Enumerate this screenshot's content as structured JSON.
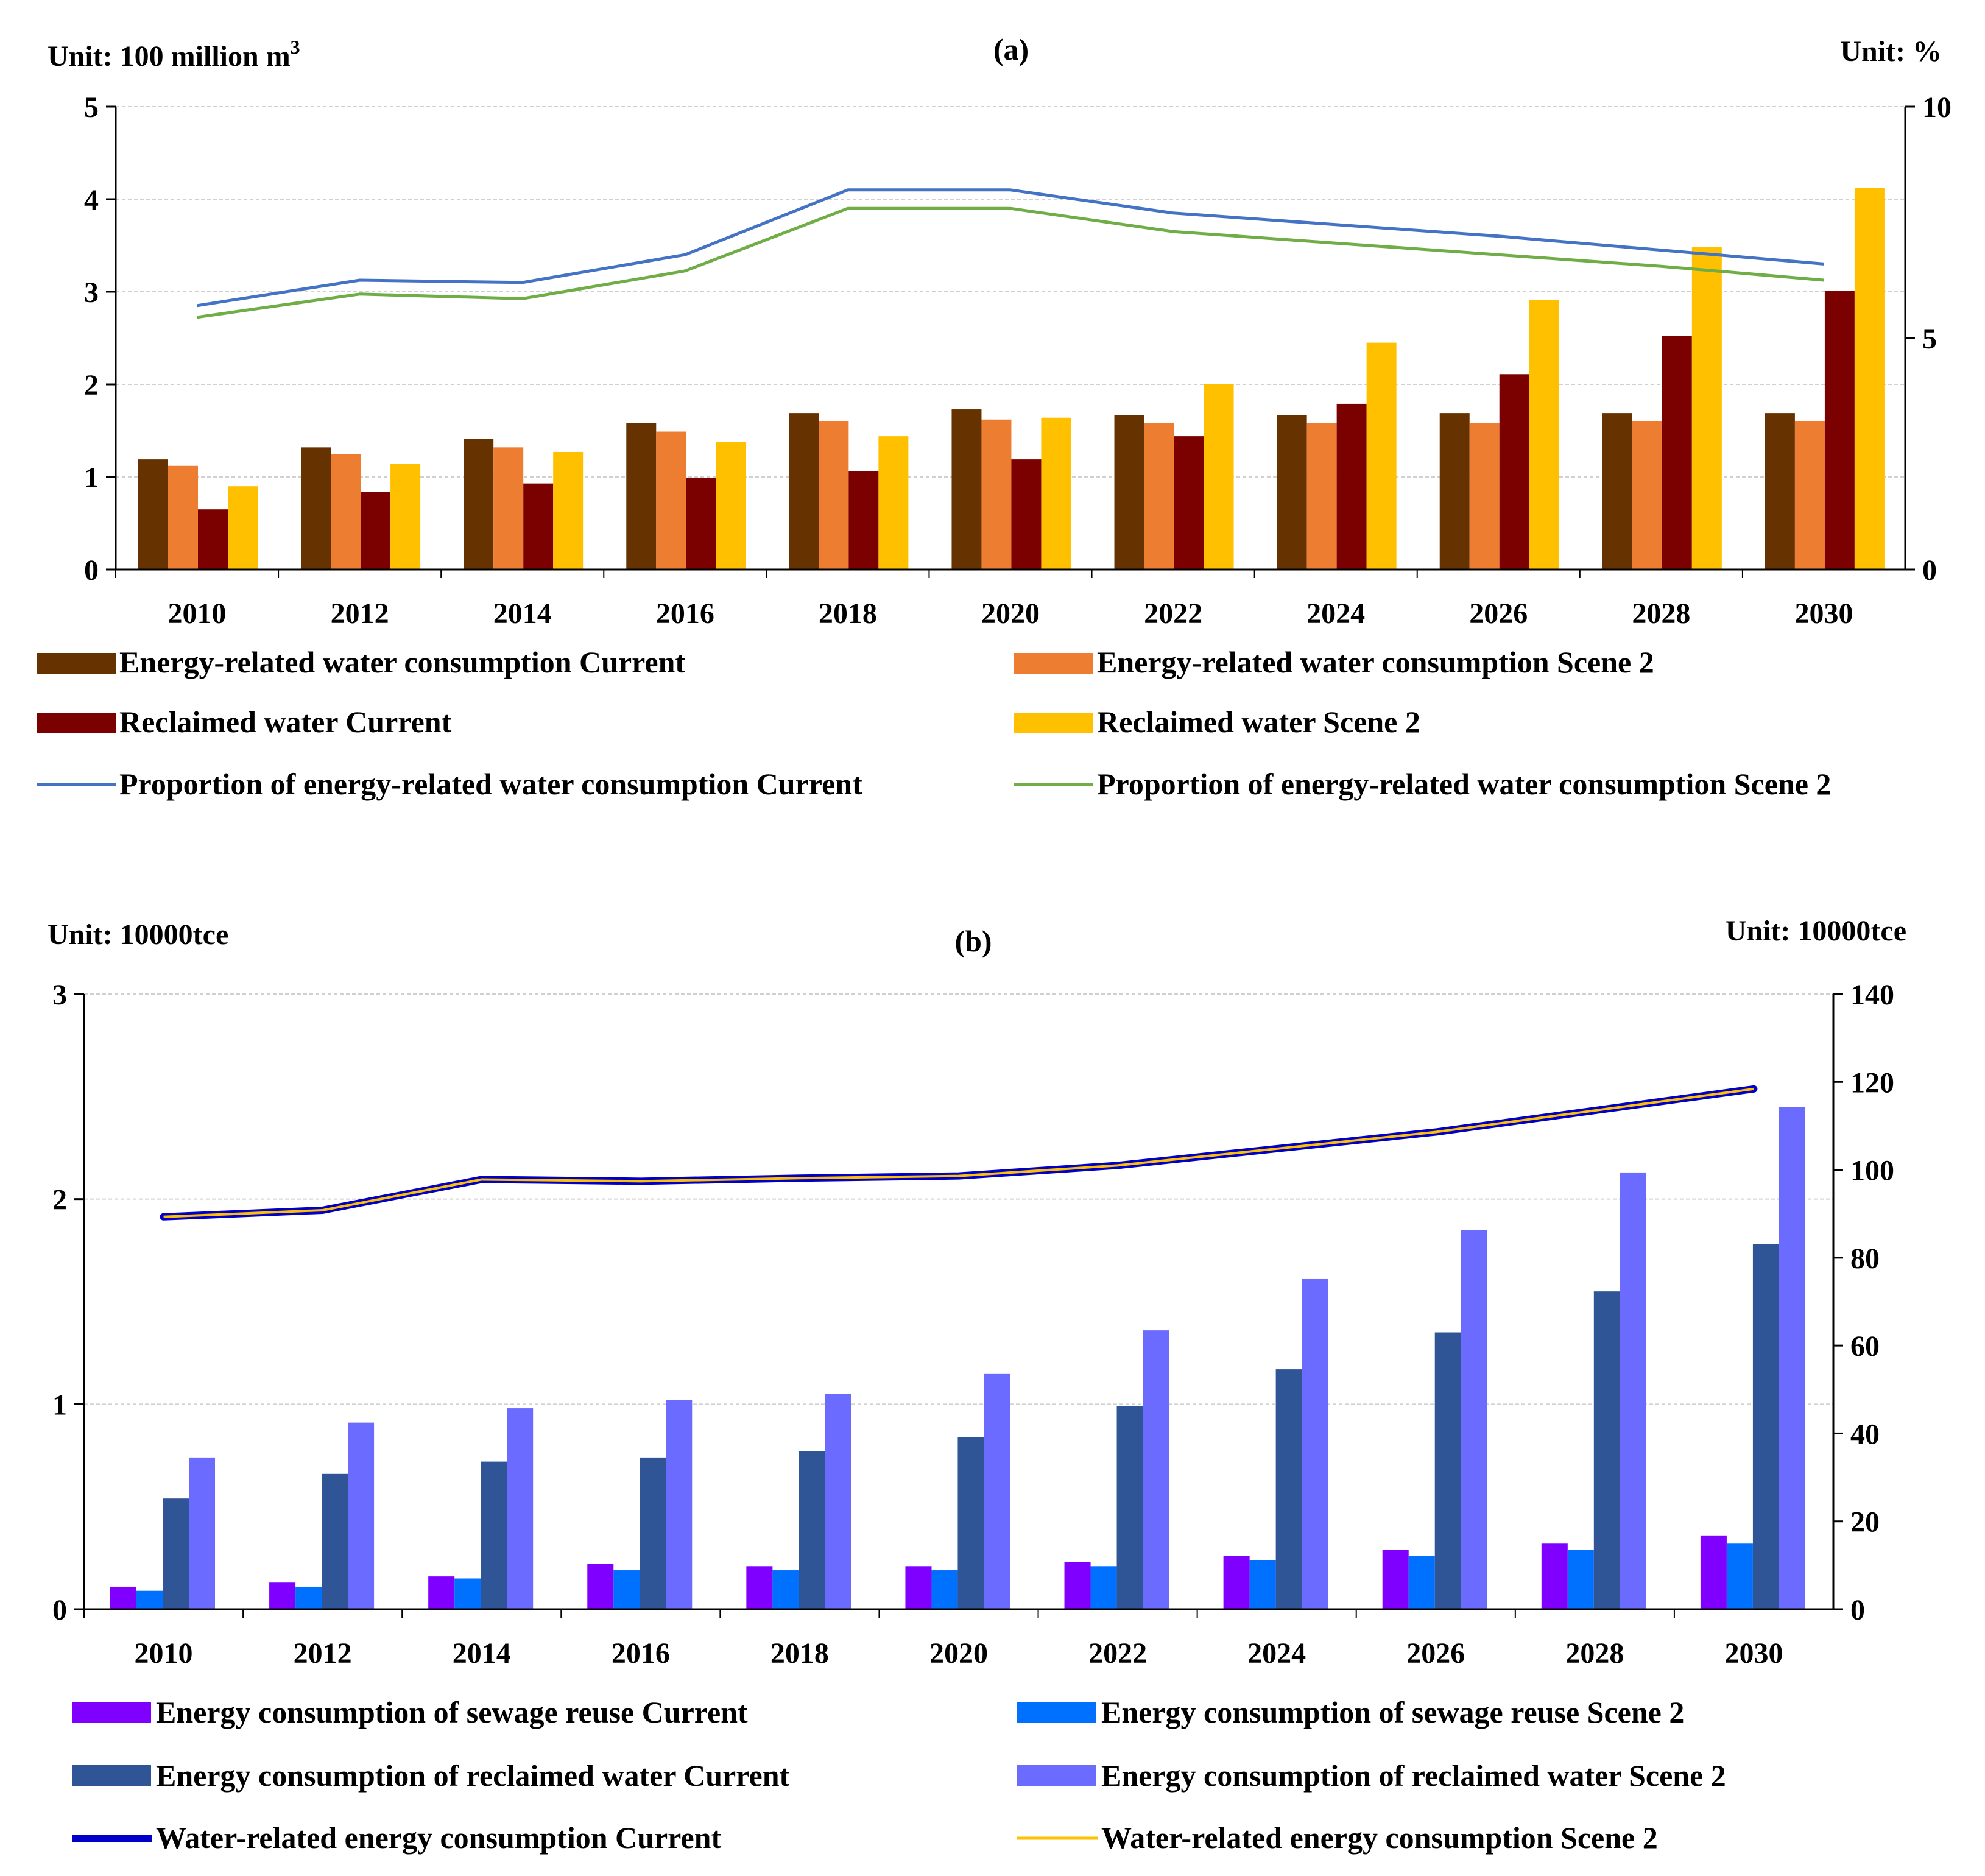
{
  "chart_data": [
    {
      "panel": "(a)",
      "type": "bar",
      "unit_left": "Unit: 100 million m",
      "unit_left_sup": "3",
      "unit_right": "Unit: %",
      "categories": [
        "2010",
        "2012",
        "2014",
        "2016",
        "2018",
        "2020",
        "2022",
        "2024",
        "2026",
        "2028",
        "2030"
      ],
      "ylim_left": [
        0,
        5
      ],
      "yticks_left": [
        0,
        1,
        2,
        3,
        4,
        5
      ],
      "ylim_right": [
        0,
        10
      ],
      "yticks_right": [
        0,
        5,
        10
      ],
      "bar_series": [
        {
          "name": "Energy-related water consumption Current",
          "color": "#663300",
          "values": [
            1.19,
            1.32,
            1.41,
            1.58,
            1.69,
            1.73,
            1.67,
            1.67,
            1.69,
            1.69,
            1.69
          ]
        },
        {
          "name": "Energy-related water consumption Scene 2",
          "color": "#ED7D31",
          "values": [
            1.12,
            1.25,
            1.32,
            1.49,
            1.6,
            1.62,
            1.58,
            1.58,
            1.58,
            1.6,
            1.6
          ]
        },
        {
          "name": "Reclaimed water Current",
          "color": "#7B0000",
          "values": [
            0.65,
            0.84,
            0.93,
            0.99,
            1.06,
            1.19,
            1.44,
            1.79,
            2.11,
            2.52,
            3.01
          ]
        },
        {
          "name": "Reclaimed water Scene 2",
          "color": "#FFC000",
          "values": [
            0.9,
            1.14,
            1.27,
            1.38,
            1.44,
            1.64,
            2.0,
            2.45,
            2.91,
            3.48,
            4.12
          ]
        }
      ],
      "line_series": [
        {
          "name": "Proportion of energy-related water consumption Current",
          "color": "#4472C4",
          "axis": "right",
          "values": [
            5.7,
            6.25,
            6.2,
            6.8,
            8.2,
            8.2,
            7.7,
            7.45,
            7.2,
            6.9,
            6.6
          ]
        },
        {
          "name": "Proportion of energy-related water consumption Scene 2",
          "color": "#70AD47",
          "axis": "right",
          "values": [
            5.45,
            5.95,
            5.85,
            6.45,
            7.8,
            7.8,
            7.3,
            7.05,
            6.8,
            6.55,
            6.25
          ]
        }
      ]
    },
    {
      "panel": "(b)",
      "type": "bar",
      "unit_left": "Unit: 10000tce",
      "unit_right": "Unit: 10000tce",
      "categories": [
        "2010",
        "2012",
        "2014",
        "2016",
        "2018",
        "2020",
        "2022",
        "2024",
        "2026",
        "2028",
        "2030"
      ],
      "ylim_left": [
        0,
        3
      ],
      "yticks_left": [
        0,
        1,
        2,
        3
      ],
      "ylim_right": [
        0,
        140
      ],
      "yticks_right": [
        0,
        20,
        40,
        60,
        80,
        100,
        120,
        140
      ],
      "bar_series": [
        {
          "name": "Energy consumption of sewage reuse Current",
          "color": "#7F00FF",
          "values": [
            0.11,
            0.13,
            0.16,
            0.22,
            0.21,
            0.21,
            0.23,
            0.26,
            0.29,
            0.32,
            0.36
          ]
        },
        {
          "name": "Energy consumption of sewage reuse Scene 2",
          "color": "#0070FF",
          "values": [
            0.09,
            0.11,
            0.15,
            0.19,
            0.19,
            0.19,
            0.21,
            0.24,
            0.26,
            0.29,
            0.32
          ]
        },
        {
          "name": "Energy consumption of reclaimed water Current",
          "color": "#2F5597",
          "values": [
            0.54,
            0.66,
            0.72,
            0.74,
            0.77,
            0.84,
            0.99,
            1.17,
            1.35,
            1.55,
            1.78
          ]
        },
        {
          "name": "Energy consumption of reclaimed water Scene 2",
          "color": "#6B6BFF",
          "values": [
            0.74,
            0.91,
            0.98,
            1.02,
            1.05,
            1.15,
            1.36,
            1.61,
            1.85,
            2.13,
            2.45
          ]
        }
      ],
      "line_series": [
        {
          "name": "Water-related energy consumption Current",
          "color": "#0000C8",
          "axis": "right",
          "style": "thick",
          "values": [
            89.3,
            90.8,
            97.8,
            97.4,
            98.1,
            98.6,
            101.0,
            104.8,
            108.6,
            113.5,
            118.4
          ]
        },
        {
          "name": "Water-related energy consumption Scene 2",
          "color": "#FFC000",
          "axis": "right",
          "style": "thin",
          "values": [
            89.3,
            90.8,
            97.8,
            97.4,
            98.1,
            98.6,
            101.0,
            104.8,
            108.6,
            113.5,
            118.4
          ]
        }
      ]
    }
  ]
}
